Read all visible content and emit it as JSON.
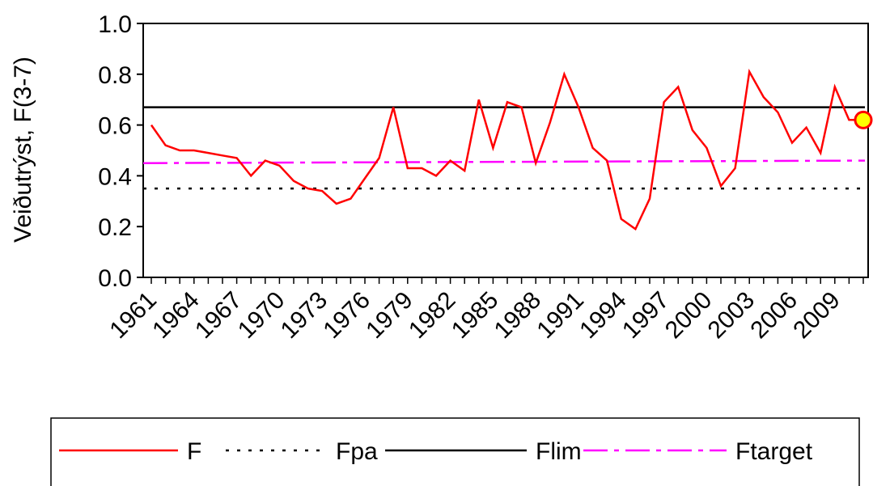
{
  "chart_data": {
    "type": "line",
    "xlabel": "",
    "ylabel": "Veiðutrýst, F(3-7)",
    "ylim": [
      0.0,
      1.0
    ],
    "xlim": [
      1961,
      2011
    ],
    "y_ticks": [
      "0.0",
      "0.2",
      "0.4",
      "0.6",
      "0.8",
      "1.0"
    ],
    "x_tick_labels": [
      "1961",
      "1964",
      "1967",
      "1970",
      "1973",
      "1976",
      "1979",
      "1982",
      "1985",
      "1988",
      "1991",
      "1994",
      "1997",
      "2000",
      "2003",
      "2006",
      "2009"
    ],
    "grid": false,
    "legend_position": "bottom",
    "series": [
      {
        "name": "F",
        "color": "#ff0000",
        "style": "solid",
        "x": [
          1961,
          1962,
          1963,
          1964,
          1965,
          1966,
          1967,
          1968,
          1969,
          1970,
          1971,
          1972,
          1973,
          1974,
          1975,
          1976,
          1977,
          1978,
          1979,
          1980,
          1981,
          1982,
          1983,
          1984,
          1985,
          1986,
          1987,
          1988,
          1989,
          1990,
          1991,
          1992,
          1993,
          1994,
          1995,
          1996,
          1997,
          1998,
          1999,
          2000,
          2001,
          2002,
          2003,
          2004,
          2005,
          2006,
          2007,
          2008,
          2009,
          2010,
          2011
        ],
        "y": [
          0.6,
          0.52,
          0.5,
          0.5,
          0.49,
          0.48,
          0.47,
          0.4,
          0.46,
          0.44,
          0.38,
          0.35,
          0.34,
          0.29,
          0.31,
          0.39,
          0.47,
          0.67,
          0.43,
          0.43,
          0.4,
          0.46,
          0.42,
          0.7,
          0.51,
          0.69,
          0.67,
          0.45,
          0.61,
          0.8,
          0.67,
          0.51,
          0.46,
          0.23,
          0.19,
          0.31,
          0.69,
          0.75,
          0.58,
          0.51,
          0.36,
          0.43,
          0.81,
          0.71,
          0.65,
          0.53,
          0.59,
          0.49,
          0.75,
          0.62,
          0.62
        ]
      },
      {
        "name": "Fpa",
        "color": "#000000",
        "style": "dotted",
        "x": [
          1961,
          2011
        ],
        "y": [
          0.35,
          0.35
        ]
      },
      {
        "name": "Flim",
        "color": "#000000",
        "style": "solid",
        "x": [
          1961,
          2011
        ],
        "y": [
          0.67,
          0.67
        ]
      },
      {
        "name": "Ftarget",
        "color": "#ff00ff",
        "style": "dashed",
        "x": [
          1961,
          2011
        ],
        "y": [
          0.45,
          0.46
        ]
      }
    ],
    "highlight_point": {
      "x": 2011,
      "y": 0.62,
      "fill": "#ffff00",
      "stroke": "#ff0000"
    }
  }
}
